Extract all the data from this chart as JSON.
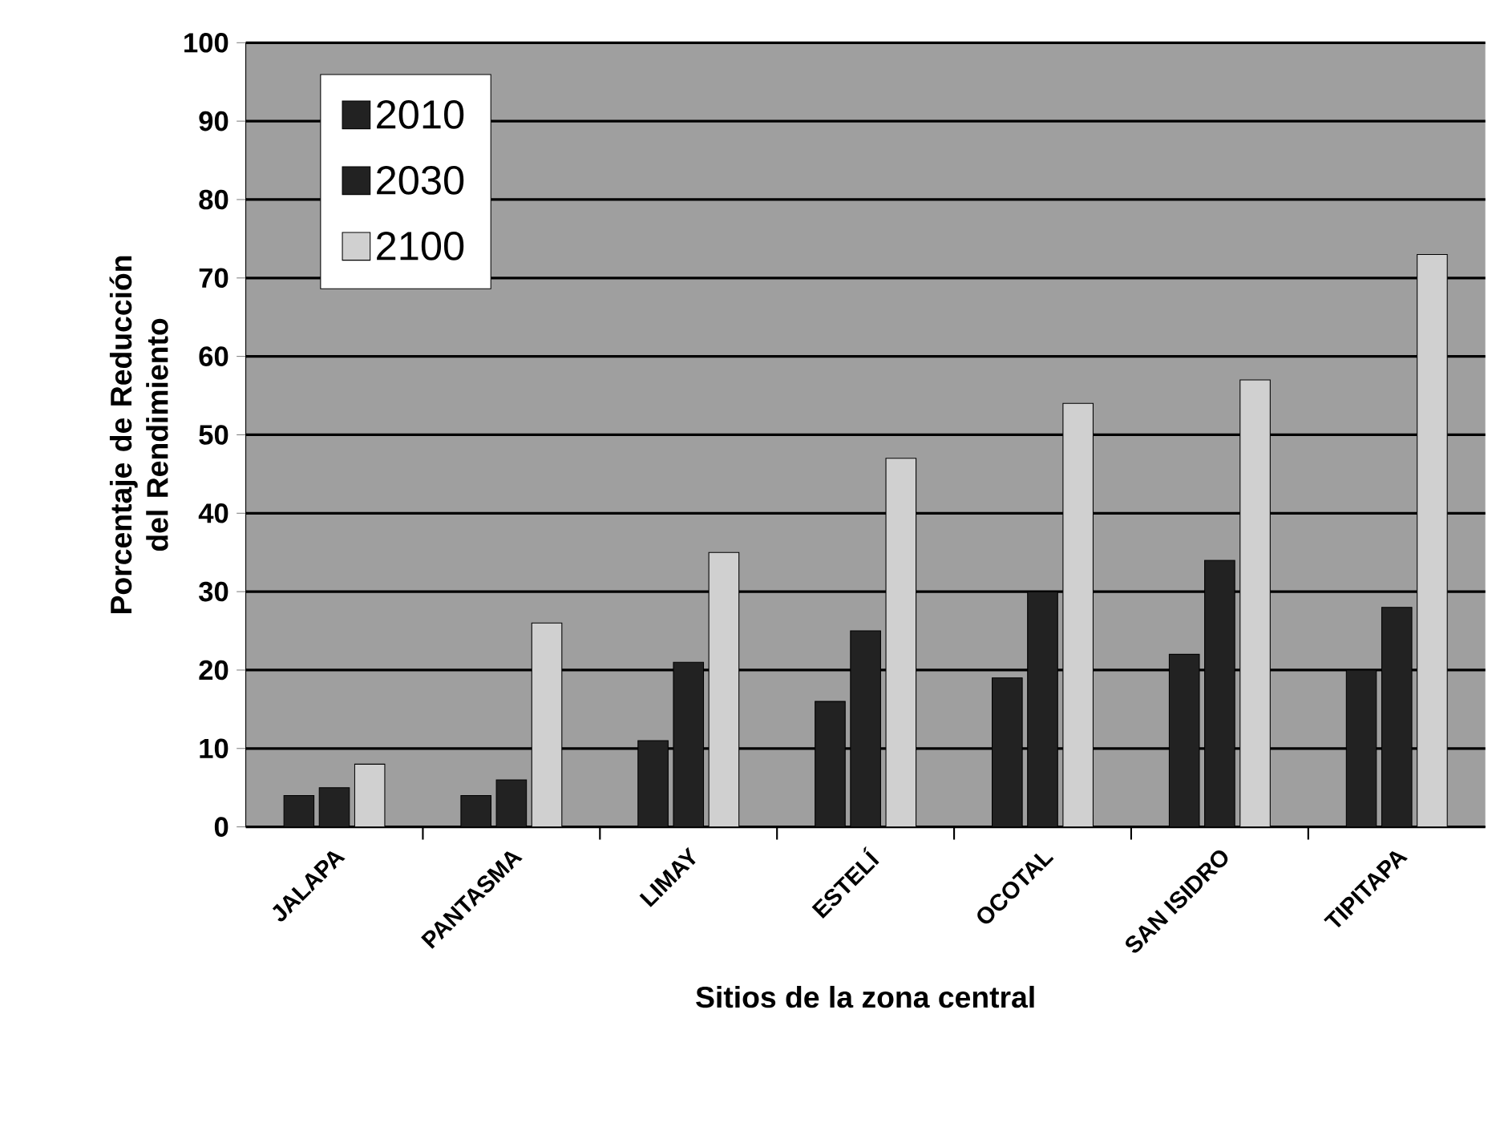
{
  "chart_data": {
    "type": "bar",
    "xlabel": "Sitios de la zona central",
    "ylabel": "Porcentaje de Reducción del Rendimiento",
    "categories": [
      "JALAPA",
      "PANTASMA",
      "LIMAY",
      "ESTELÍ",
      "OCOTAL",
      "SAN ISIDRO",
      "TIPITAPA"
    ],
    "series": [
      {
        "name": "2010",
        "color": "#222222",
        "values": [
          4,
          4,
          11,
          16,
          19,
          22,
          20
        ]
      },
      {
        "name": "2030",
        "color": "#222222",
        "values": [
          5,
          6,
          21,
          25,
          30,
          34,
          28
        ]
      },
      {
        "name": "2100",
        "color": "#d0d0d0",
        "values": [
          8,
          26,
          35,
          47,
          54,
          57,
          73
        ]
      }
    ],
    "ylim": [
      0,
      100
    ],
    "yticks": [
      0,
      10,
      20,
      30,
      40,
      50,
      60,
      70,
      80,
      90,
      100
    ],
    "grid": "y",
    "legend": "top left"
  }
}
